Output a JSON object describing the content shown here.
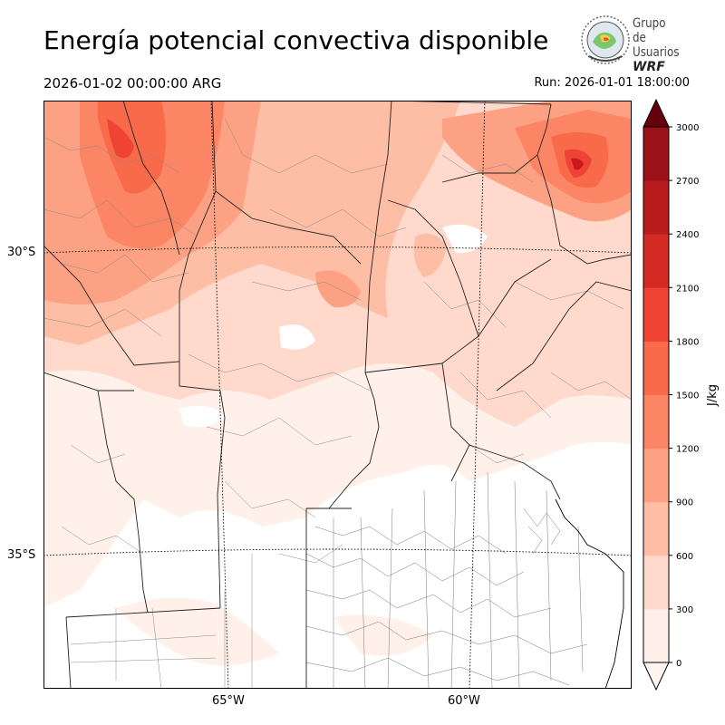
{
  "header": {
    "title": "Energía potencial convectiva disponible",
    "valid_time": "2026-01-02 00:00:00 ARG",
    "run_time": "Run: 2026-01-01 18:00:00"
  },
  "logo": {
    "line1": "Grupo de",
    "line2": "Usuarios",
    "line3": "WRF",
    "icon": "globe-seal-icon"
  },
  "map": {
    "lat_labels": [
      "30°S",
      "35°S"
    ],
    "lon_labels": [
      "65°W",
      "60°W"
    ],
    "colors": [
      "#fff5f0",
      "#fee0d2",
      "#fcbba1",
      "#fc9272",
      "#fb6a4a",
      "#ef3b2c",
      "#cb181d",
      "#a50f15",
      "#67000d"
    ]
  },
  "colorbar": {
    "label": "J/kg",
    "ticks": [
      "0",
      "300",
      "600",
      "900",
      "1200",
      "1500",
      "1800",
      "2100",
      "2400",
      "2700",
      "3000"
    ],
    "colors": [
      "#fff0ea",
      "#fed9cc",
      "#fdbea5",
      "#fca183",
      "#fb8564",
      "#f86a4a",
      "#ee4335",
      "#d62a24",
      "#b91c1d",
      "#9a1117",
      "#7a0711"
    ],
    "extend_max_color": "#67000d"
  }
}
